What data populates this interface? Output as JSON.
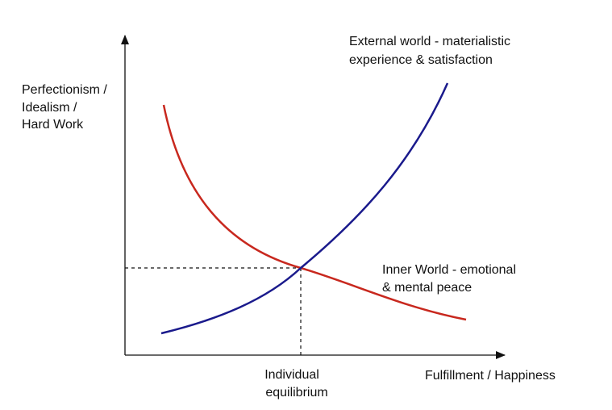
{
  "y_axis_label": {
    "lines": [
      "Perfectionism /",
      "Idealism /",
      "Hard Work"
    ]
  },
  "x_axis_label": {
    "text": "Fulfillment / Happiness"
  },
  "curves": [
    {
      "label": {
        "lines": [
          "External world - materialistic",
          "experience & satisfaction"
        ]
      }
    },
    {
      "label": {
        "lines": [
          "Inner World - emotional",
          "& mental peace"
        ]
      }
    }
  ],
  "equilibrium": {
    "label": {
      "lines": [
        "Individual",
        "equilibrium"
      ]
    }
  }
}
